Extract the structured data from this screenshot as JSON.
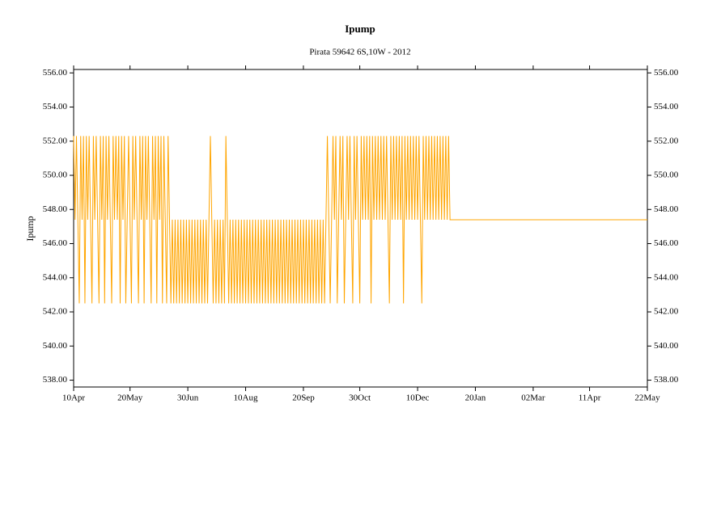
{
  "chart_data": {
    "type": "line",
    "title": "Ipump",
    "subtitle": "Pirata 59642 6S,10W - 2012",
    "ylabel": "Ipump",
    "color": "#ffa500",
    "x": [
      0,
      1,
      2,
      3,
      4,
      5,
      6,
      7,
      8,
      9,
      10,
      11,
      12,
      13,
      14,
      15,
      16,
      17,
      18,
      19,
      20,
      21,
      22,
      23,
      24,
      25,
      26,
      27,
      28,
      29,
      30,
      31,
      32,
      33,
      34,
      35,
      36,
      37,
      38,
      39,
      40,
      41,
      42,
      43,
      44,
      45,
      46,
      47,
      48,
      49,
      50,
      51,
      52,
      53,
      54,
      55,
      56,
      57,
      58,
      59,
      60,
      61,
      62,
      63,
      64,
      65,
      66,
      67,
      68,
      69,
      70,
      71,
      72,
      73,
      74,
      75,
      76,
      77,
      78,
      79,
      80,
      81,
      82,
      83,
      84,
      85,
      86,
      87,
      88,
      89,
      90,
      91,
      92,
      93,
      94,
      95,
      96,
      97,
      98,
      99,
      100,
      101,
      102,
      103,
      104,
      105,
      106,
      107,
      108,
      109,
      110,
      111,
      112,
      113,
      114,
      115,
      116,
      117,
      118,
      119,
      120,
      121,
      122,
      123,
      124,
      125,
      126,
      127,
      128,
      129,
      130,
      131,
      132,
      133,
      134,
      135,
      136,
      137,
      138,
      139,
      140,
      141,
      142,
      143,
      144,
      145,
      146,
      147,
      148,
      149,
      150,
      151,
      152,
      153,
      154,
      155,
      156,
      157,
      158,
      159,
      160,
      161,
      162,
      163,
      164,
      165,
      166,
      167,
      168,
      169,
      170,
      171,
      172,
      173,
      174,
      175,
      176,
      177,
      178,
      179,
      180,
      181,
      182,
      183,
      184,
      185,
      186,
      187,
      188,
      189,
      190,
      191,
      192,
      193,
      194,
      195,
      196,
      197,
      198,
      199,
      200,
      201,
      202,
      203,
      204,
      205,
      206,
      207,
      208,
      209,
      210,
      211,
      212,
      213,
      214,
      215,
      216,
      217,
      218,
      219,
      220,
      221,
      222,
      223,
      224,
      225,
      226,
      227,
      228,
      229,
      230,
      231,
      232,
      233,
      234,
      235,
      236,
      237,
      238,
      239,
      240,
      241,
      242,
      243,
      244,
      245,
      246,
      247,
      248,
      249,
      250,
      251,
      252,
      253,
      254,
      255,
      256,
      257,
      258,
      259,
      260,
      261,
      262,
      263,
      264,
      265,
      266,
      267,
      407
    ],
    "values": [
      552.3,
      547.4,
      552.3,
      547.4,
      542.5,
      552.3,
      547.4,
      552.3,
      542.5,
      552.3,
      547.4,
      552.3,
      547.4,
      542.5,
      552.3,
      547.4,
      552.3,
      547.4,
      542.5,
      552.3,
      547.4,
      552.3,
      542.5,
      552.3,
      547.4,
      552.3,
      547.4,
      542.5,
      552.3,
      547.4,
      552.3,
      547.4,
      552.3,
      542.5,
      552.3,
      547.4,
      552.3,
      542.5,
      547.4,
      552.3,
      547.4,
      542.5,
      552.3,
      547.4,
      552.3,
      547.4,
      542.5,
      552.3,
      547.4,
      552.3,
      542.5,
      552.3,
      547.4,
      552.3,
      547.4,
      542.5,
      552.3,
      547.4,
      552.3,
      542.5,
      552.3,
      547.4,
      552.3,
      542.5,
      552.3,
      547.4,
      542.5,
      552.3,
      547.4,
      542.5,
      547.4,
      542.5,
      547.4,
      542.5,
      547.4,
      542.5,
      547.4,
      542.5,
      547.4,
      542.5,
      547.4,
      542.5,
      547.4,
      542.5,
      547.4,
      542.5,
      547.4,
      542.5,
      547.4,
      542.5,
      547.4,
      542.5,
      547.4,
      542.5,
      547.4,
      542.5,
      547.4,
      552.3,
      547.4,
      542.5,
      547.4,
      542.5,
      547.4,
      542.5,
      547.4,
      542.5,
      547.4,
      542.5,
      552.3,
      547.4,
      542.5,
      547.4,
      542.5,
      547.4,
      542.5,
      547.4,
      542.5,
      547.4,
      542.5,
      547.4,
      542.5,
      547.4,
      542.5,
      547.4,
      542.5,
      547.4,
      542.5,
      547.4,
      542.5,
      547.4,
      542.5,
      547.4,
      542.5,
      547.4,
      542.5,
      547.4,
      542.5,
      547.4,
      542.5,
      547.4,
      542.5,
      547.4,
      542.5,
      547.4,
      542.5,
      547.4,
      542.5,
      547.4,
      542.5,
      547.4,
      542.5,
      547.4,
      542.5,
      547.4,
      542.5,
      547.4,
      542.5,
      547.4,
      542.5,
      547.4,
      542.5,
      547.4,
      542.5,
      547.4,
      542.5,
      547.4,
      542.5,
      547.4,
      542.5,
      547.4,
      542.5,
      547.4,
      542.5,
      547.4,
      542.5,
      547.4,
      542.5,
      547.4,
      542.5,
      547.4,
      552.3,
      547.4,
      542.5,
      547.4,
      552.3,
      547.4,
      552.3,
      542.5,
      547.4,
      552.3,
      547.4,
      552.3,
      542.5,
      547.4,
      552.3,
      547.4,
      552.3,
      547.4,
      542.5,
      552.3,
      547.4,
      552.3,
      547.4,
      542.5,
      552.3,
      547.4,
      552.3,
      547.4,
      552.3,
      547.4,
      552.3,
      542.5,
      552.3,
      547.4,
      552.3,
      547.4,
      552.3,
      547.4,
      552.3,
      547.4,
      552.3,
      547.4,
      552.3,
      547.4,
      542.5,
      552.3,
      547.4,
      552.3,
      547.4,
      552.3,
      547.4,
      552.3,
      547.4,
      552.3,
      542.5,
      552.3,
      547.4,
      552.3,
      547.4,
      552.3,
      547.4,
      552.3,
      547.4,
      552.3,
      547.4,
      552.3,
      547.4,
      542.5,
      552.3,
      547.4,
      552.3,
      547.4,
      552.3,
      547.4,
      552.3,
      547.4,
      552.3,
      547.4,
      552.3,
      547.4,
      552.3,
      547.4,
      552.3,
      547.4,
      552.3,
      547.4,
      552.3,
      547.4,
      547.4
    ],
    "xlim": [
      0,
      407
    ],
    "xticks": [
      {
        "value": 0,
        "label": "10Apr"
      },
      {
        "value": 40,
        "label": "20May"
      },
      {
        "value": 81,
        "label": "30Jun"
      },
      {
        "value": 122,
        "label": "10Aug"
      },
      {
        "value": 163,
        "label": "20Sep"
      },
      {
        "value": 203,
        "label": "30Oct"
      },
      {
        "value": 244,
        "label": "10Dec"
      },
      {
        "value": 285,
        "label": "20Jan"
      },
      {
        "value": 326,
        "label": "02Mar"
      },
      {
        "value": 366,
        "label": "11Apr"
      },
      {
        "value": 407,
        "label": "22May"
      }
    ],
    "ylim": [
      537.6,
      556.2
    ],
    "yticks": [
      {
        "value": 538,
        "label": "538.00"
      },
      {
        "value": 540,
        "label": "540.00"
      },
      {
        "value": 542,
        "label": "542.00"
      },
      {
        "value": 544,
        "label": "544.00"
      },
      {
        "value": 546,
        "label": "546.00"
      },
      {
        "value": 548,
        "label": "548.00"
      },
      {
        "value": 550,
        "label": "550.00"
      },
      {
        "value": 552,
        "label": "552.00"
      },
      {
        "value": 554,
        "label": "554.00"
      },
      {
        "value": 556,
        "label": "556.00"
      }
    ]
  }
}
